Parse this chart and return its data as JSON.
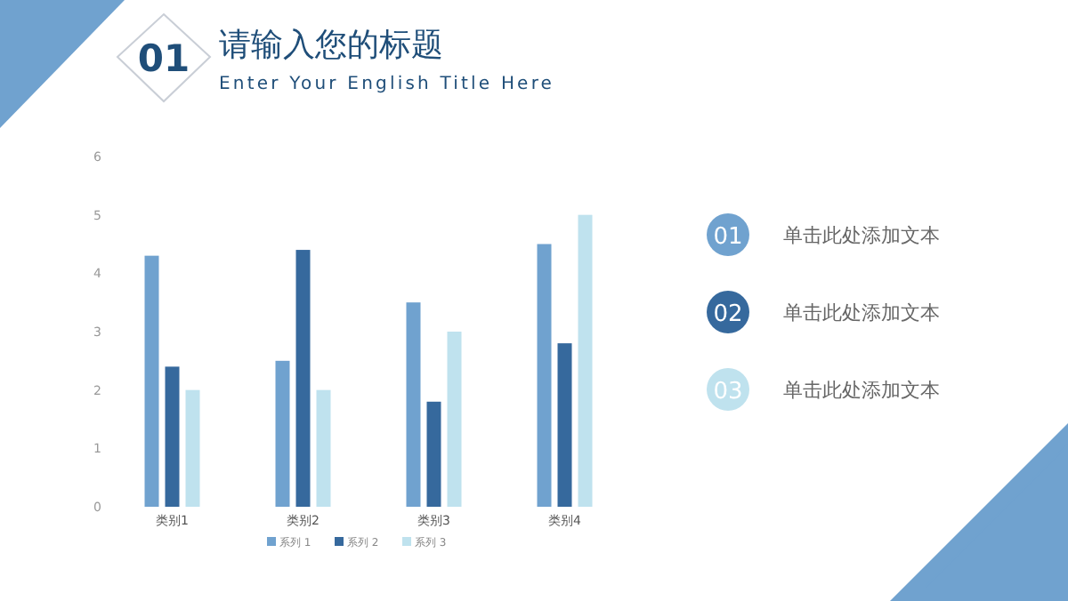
{
  "chart_data": [
    {
      "type": "bar",
      "title": "请输入您的标题",
      "subtitle": "Enter Your English Title Here",
      "annotations": [
        "01"
      ],
      "categories": [
        "类别1",
        "类别2",
        "类别3",
        "类别4"
      ],
      "series": [
        {
          "name": "系列 1",
          "color": "#70a2cf",
          "values": [
            4.3,
            2.5,
            3.5,
            4.5
          ]
        },
        {
          "name": "系列 2",
          "color": "#36699d",
          "values": [
            2.4,
            4.4,
            1.8,
            2.8
          ]
        },
        {
          "name": "系列 3",
          "color": "#bfe2ee",
          "values": [
            2,
            2,
            3,
            5
          ]
        }
      ],
      "ylim": [
        0,
        6
      ],
      "yticks": [
        0,
        1,
        2,
        3,
        4,
        5,
        6
      ],
      "grid": false,
      "legend": "bottom"
    },
    {
      "type": "other",
      "categories": [
        "01",
        "02",
        "03"
      ],
      "colors": [
        "#70a2cf",
        "#36699d",
        "#bfe2ee"
      ],
      "annotations": [
        "单击此处添加文本",
        "单击此处添加文本",
        "单击此处添加文本"
      ]
    }
  ]
}
